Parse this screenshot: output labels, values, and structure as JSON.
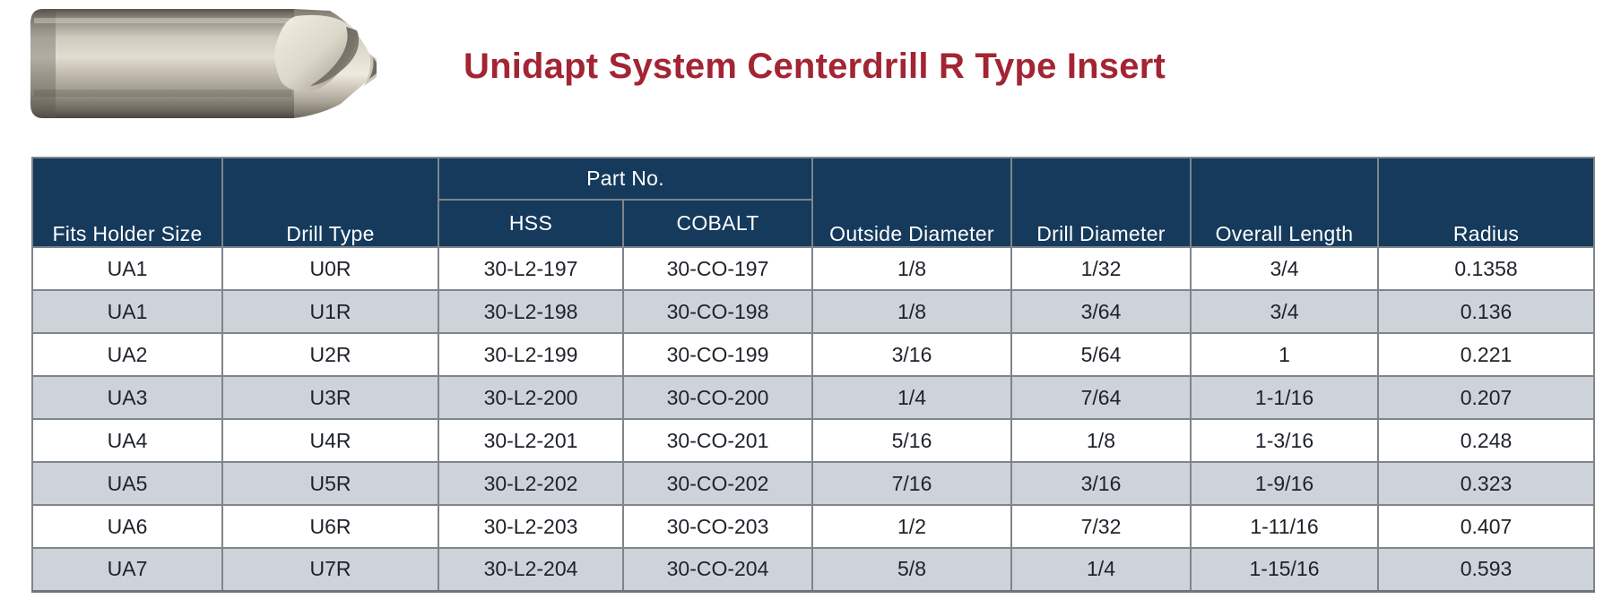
{
  "page": {
    "title": "Unidapt System Centerdrill R Type Insert",
    "title_color": "#A32433"
  },
  "product_image": {
    "name": "centerdrill-insert-photo"
  },
  "table": {
    "part_no_group_label": "Part No.",
    "columns": [
      "Fits Holder Size",
      "Drill Type",
      "HSS",
      "COBALT",
      "Outside Diameter",
      "Drill Diameter",
      "Overall Length",
      "Radius"
    ],
    "rows": [
      [
        "UA1",
        "U0R",
        "30-L2-197",
        "30-CO-197",
        "1/8",
        "1/32",
        "3/4",
        "0.1358"
      ],
      [
        "UA1",
        "U1R",
        "30-L2-198",
        "30-CO-198",
        "1/8",
        "3/64",
        "3/4",
        "0.136"
      ],
      [
        "UA2",
        "U2R",
        "30-L2-199",
        "30-CO-199",
        "3/16",
        "5/64",
        "1",
        "0.221"
      ],
      [
        "UA3",
        "U3R",
        "30-L2-200",
        "30-CO-200",
        "1/4",
        "7/64",
        "1-1/16",
        "0.207"
      ],
      [
        "UA4",
        "U4R",
        "30-L2-201",
        "30-CO-201",
        "5/16",
        "1/8",
        "1-3/16",
        "0.248"
      ],
      [
        "UA5",
        "U5R",
        "30-L2-202",
        "30-CO-202",
        "7/16",
        "3/16",
        "1-9/16",
        "0.323"
      ],
      [
        "UA6",
        "U6R",
        "30-L2-203",
        "30-CO-203",
        "1/2",
        "7/32",
        "1-11/16",
        "0.407"
      ],
      [
        "UA7",
        "U7R",
        "30-L2-204",
        "30-CO-204",
        "5/8",
        "1/4",
        "1-15/16",
        "0.593"
      ]
    ],
    "colors": {
      "header_bg": "#153A5C",
      "row_alt_bg": "#CDD3D9",
      "border": "#7E858B",
      "header_text": "#FFFFFF",
      "body_text": "#1E222A"
    }
  }
}
